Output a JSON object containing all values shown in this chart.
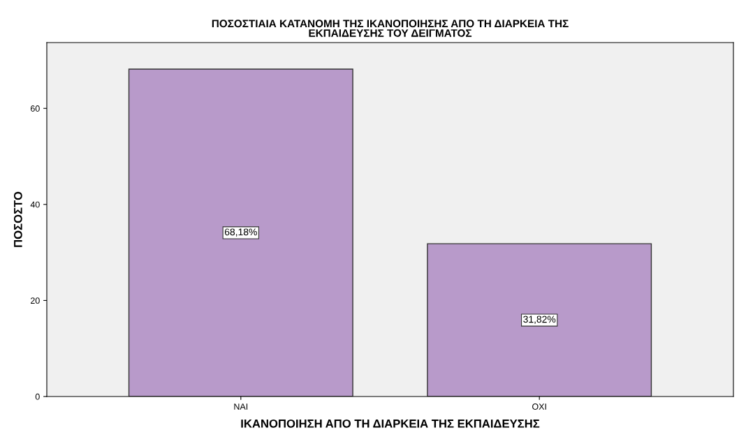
{
  "chart_data": {
    "type": "bar",
    "title": "ΠΟΣΟΣΤΙΑΙΑ ΚΑΤΑΝΟΜΗ ΤΗΣ ΙΚΑΝΟΠΟΙΗΣΗΣ ΑΠΟ ΤΗ ΔΙΑΡΚΕΙΑ ΤΗΣ\nΕΚΠΑΙΔΕΥΣΗΣ ΤΟΥ ΔΕΙΓΜΑΤΟΣ",
    "xlabel": "ΙΚΑΝΟΠΟΙΗΣΗ ΑΠΟ ΤΗ ΔΙΑΡΚΕΙΑ ΤΗΣ ΕΚΠΑΙΔΕΥΣΗΣ",
    "ylabel": "ΠΟΣΟΣΤΟ",
    "categories": [
      "ΝΑΙ",
      "ΟΧΙ"
    ],
    "values": [
      68.18,
      31.82
    ],
    "value_labels": [
      "68,18%",
      "31,82%"
    ],
    "color": "#b89aca",
    "ylim": [
      0,
      73.7
    ],
    "yticks": [
      0,
      20,
      40,
      60
    ],
    "grid": false,
    "legend": false
  }
}
